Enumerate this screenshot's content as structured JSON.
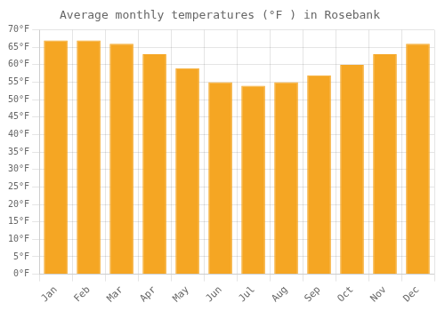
{
  "chart_data": {
    "type": "bar",
    "title": "Average monthly temperatures (°F ) in Rosebank",
    "categories": [
      "Jan",
      "Feb",
      "Mar",
      "Apr",
      "May",
      "Jun",
      "Jul",
      "Aug",
      "Sep",
      "Oct",
      "Nov",
      "Dec"
    ],
    "values": [
      67,
      67,
      66,
      63,
      59,
      55,
      54,
      55,
      57,
      60,
      63,
      66
    ],
    "color": "#F5A623",
    "ylim": [
      0,
      70
    ],
    "yticks": [
      {
        "value": 0,
        "label": "0°F"
      },
      {
        "value": 5,
        "label": "5°F"
      },
      {
        "value": 10,
        "label": "10°F"
      },
      {
        "value": 15,
        "label": "15°F"
      },
      {
        "value": 20,
        "label": "20°F"
      },
      {
        "value": 25,
        "label": "25°F"
      },
      {
        "value": 30,
        "label": "30°F"
      },
      {
        "value": 35,
        "label": "35°F"
      },
      {
        "value": 40,
        "label": "40°F"
      },
      {
        "value": 45,
        "label": "45°F"
      },
      {
        "value": 50,
        "label": "50°F"
      },
      {
        "value": 55,
        "label": "55°F"
      },
      {
        "value": 60,
        "label": "60°F"
      },
      {
        "value": 65,
        "label": "65°F"
      },
      {
        "value": 70,
        "label": "70°F"
      }
    ],
    "grid": true
  }
}
